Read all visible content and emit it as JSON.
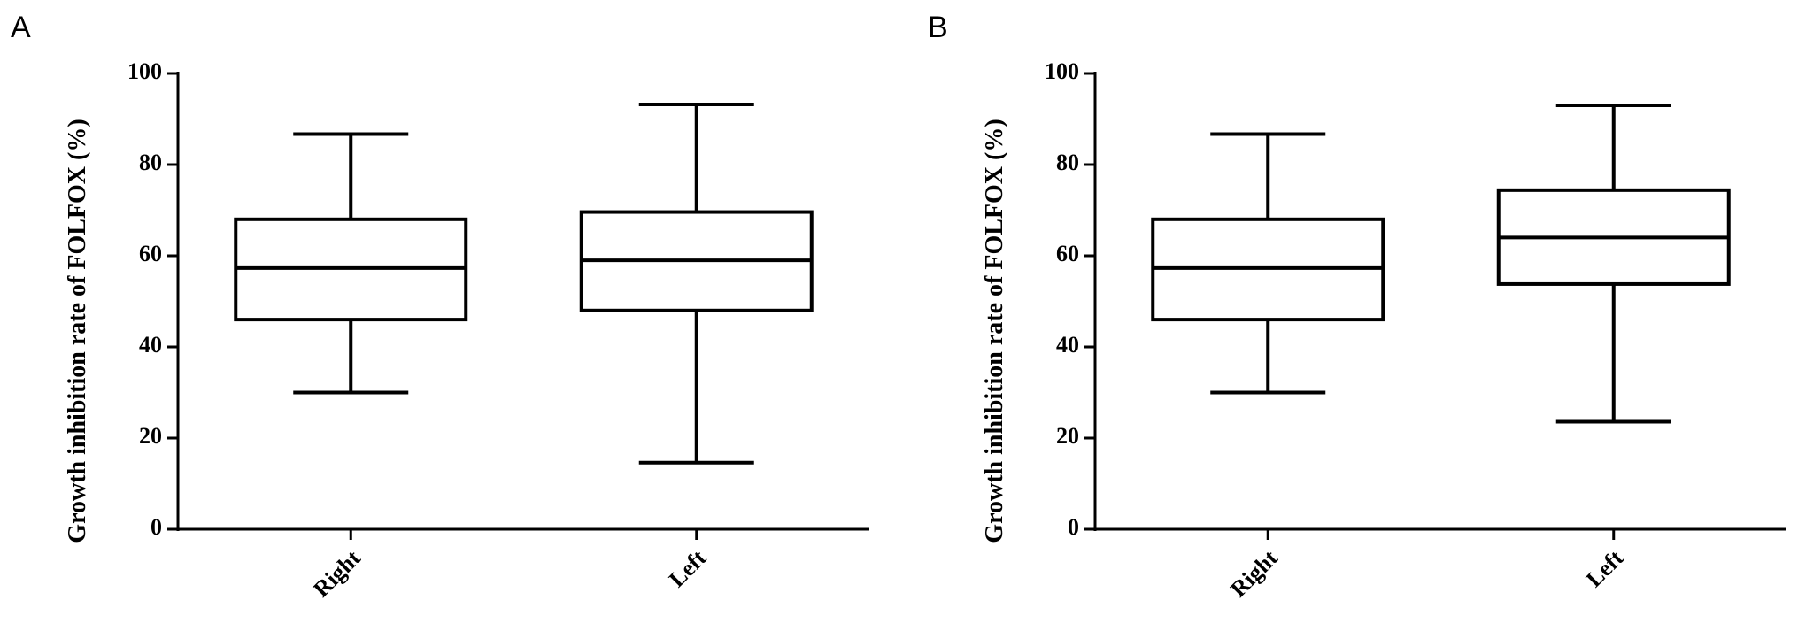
{
  "chart_data": [
    {
      "type": "box",
      "label": "A",
      "y_label": "Growth inhibition rate of FOLFOX (%)",
      "categories": [
        "Right",
        "Left"
      ],
      "min": [
        30,
        14.6
      ],
      "q1": [
        46,
        48
      ],
      "median": [
        57.3,
        59
      ],
      "q3": [
        68,
        69.6
      ],
      "max": [
        86.7,
        93.2
      ],
      "color": "#000000",
      "ylim": [
        0,
        100
      ],
      "yticks": [
        0,
        20,
        40,
        60,
        80,
        100
      ]
    },
    {
      "type": "box",
      "label": "B",
      "y_label": "Growth inhibition rate of FOLFOX (%)",
      "categories": [
        "Right",
        "Left"
      ],
      "min": [
        30,
        23.6
      ],
      "q1": [
        46,
        53.8
      ],
      "median": [
        57.3,
        64
      ],
      "q3": [
        68,
        74.4
      ],
      "max": [
        86.7,
        93
      ],
      "color": "#000000",
      "ylim": [
        0,
        100
      ],
      "yticks": [
        0,
        20,
        40,
        60,
        80,
        100
      ]
    }
  ]
}
